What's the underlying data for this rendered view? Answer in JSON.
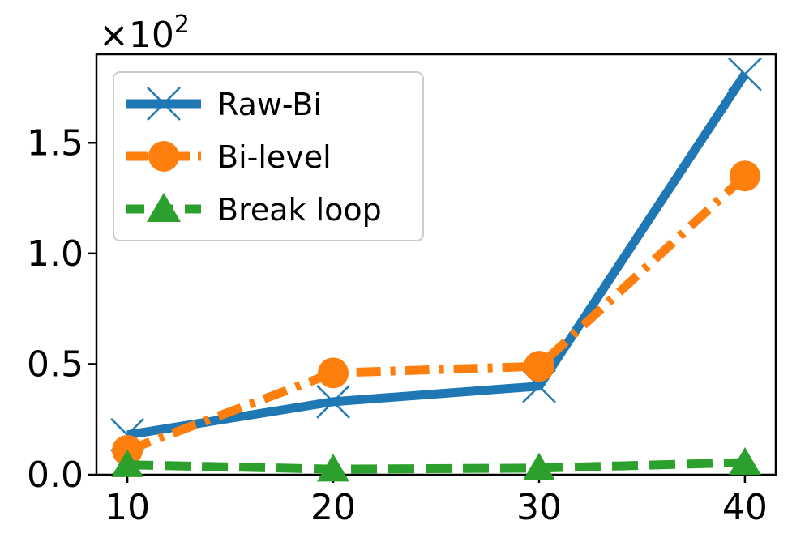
{
  "chart_data": {
    "type": "line",
    "title": "",
    "xlabel": "",
    "ylabel": "",
    "x": [
      10,
      20,
      30,
      40
    ],
    "xticks": [
      "10",
      "20",
      "30",
      "40"
    ],
    "yticks": [
      "0.0",
      "0.5",
      "1.0",
      "1.5"
    ],
    "ytick_values": [
      0,
      0.5,
      1.0,
      1.5
    ],
    "xlim": [
      8.5,
      41.5
    ],
    "ylim": [
      0,
      1.9
    ],
    "y_multiplier": "×10",
    "y_multiplier_exponent": "2",
    "legend_position": "upper-left",
    "grid": false,
    "series": [
      {
        "name": "Raw-Bi",
        "values": [
          0.18,
          0.33,
          0.4,
          1.81
        ],
        "color": "#1f77b4",
        "line_style": "solid",
        "marker": "x"
      },
      {
        "name": "Bi-level",
        "values": [
          0.11,
          0.46,
          0.49,
          1.35
        ],
        "color": "#ff7f0e",
        "line_style": "dash-dot",
        "marker": "circle"
      },
      {
        "name": "Break loop",
        "values": [
          0.045,
          0.025,
          0.03,
          0.055
        ],
        "color": "#2ca02c",
        "line_style": "dashed",
        "marker": "triangle"
      }
    ]
  }
}
